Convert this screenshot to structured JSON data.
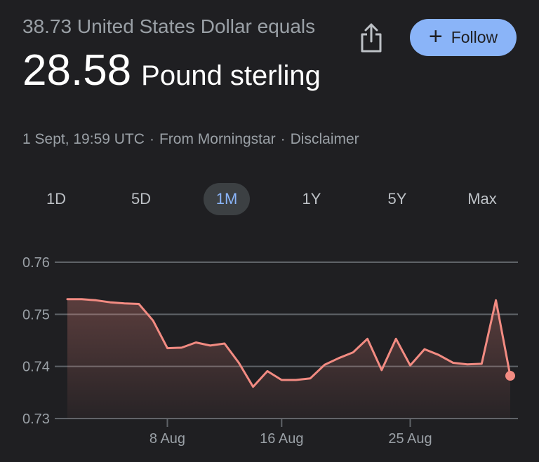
{
  "conversion": {
    "from_text": "38.73 United States Dollar equals",
    "result_value": "28.58",
    "result_currency": "Pound sterling"
  },
  "actions": {
    "share_icon": "share-icon",
    "follow_label": "Follow",
    "follow_icon": "+"
  },
  "meta": {
    "timestamp": "1 Sept, 19:59 UTC",
    "separator": "·",
    "source": "From Morningstar",
    "disclaimer": "Disclaimer"
  },
  "tabs": [
    {
      "label": "1D",
      "active": false
    },
    {
      "label": "5D",
      "active": false
    },
    {
      "label": "1M",
      "active": true
    },
    {
      "label": "1Y",
      "active": false
    },
    {
      "label": "5Y",
      "active": false
    },
    {
      "label": "Max",
      "active": false
    }
  ],
  "colors": {
    "background": "#1f1f22",
    "accent": "#8ab4f8",
    "line": "#f28b82",
    "grid": "#5f6368",
    "muted_text": "#9aa0a6"
  },
  "chart_data": {
    "type": "area",
    "title": "",
    "xlabel": "",
    "ylabel": "",
    "ylim": [
      0.73,
      0.76
    ],
    "yticks": [
      "0.73",
      "0.74",
      "0.75",
      "0.76"
    ],
    "xticks": [
      "8 Aug",
      "16 Aug",
      "25 Aug"
    ],
    "xlim": [
      "2024-08-01",
      "2024-09-01"
    ],
    "grid": true,
    "series": [
      {
        "points": [
          [
            "2024-08-01",
            0.7529
          ],
          [
            "2024-08-02",
            0.7529
          ],
          [
            "2024-08-03",
            0.7527
          ],
          [
            "2024-08-04",
            0.7523
          ],
          [
            "2024-08-05",
            0.7521
          ],
          [
            "2024-08-06",
            0.752
          ],
          [
            "2024-08-07",
            0.7488
          ],
          [
            "2024-08-08",
            0.7435
          ],
          [
            "2024-08-09",
            0.7436
          ],
          [
            "2024-08-10",
            0.7446
          ],
          [
            "2024-08-11",
            0.744
          ],
          [
            "2024-08-12",
            0.7444
          ],
          [
            "2024-08-13",
            0.7407
          ],
          [
            "2024-08-14",
            0.7361
          ],
          [
            "2024-08-15",
            0.7391
          ],
          [
            "2024-08-16",
            0.7374
          ],
          [
            "2024-08-17",
            0.7374
          ],
          [
            "2024-08-18",
            0.7377
          ],
          [
            "2024-08-19",
            0.7403
          ],
          [
            "2024-08-20",
            0.7416
          ],
          [
            "2024-08-21",
            0.7427
          ],
          [
            "2024-08-22",
            0.7453
          ],
          [
            "2024-08-23",
            0.7393
          ],
          [
            "2024-08-24",
            0.7453
          ],
          [
            "2024-08-25",
            0.7402
          ],
          [
            "2024-08-26",
            0.7433
          ],
          [
            "2024-08-27",
            0.7422
          ],
          [
            "2024-08-28",
            0.7407
          ],
          [
            "2024-08-29",
            0.7404
          ],
          [
            "2024-08-30",
            0.7405
          ],
          [
            "2024-08-31",
            0.7527
          ],
          [
            "2024-09-01",
            0.7382
          ]
        ]
      }
    ]
  }
}
